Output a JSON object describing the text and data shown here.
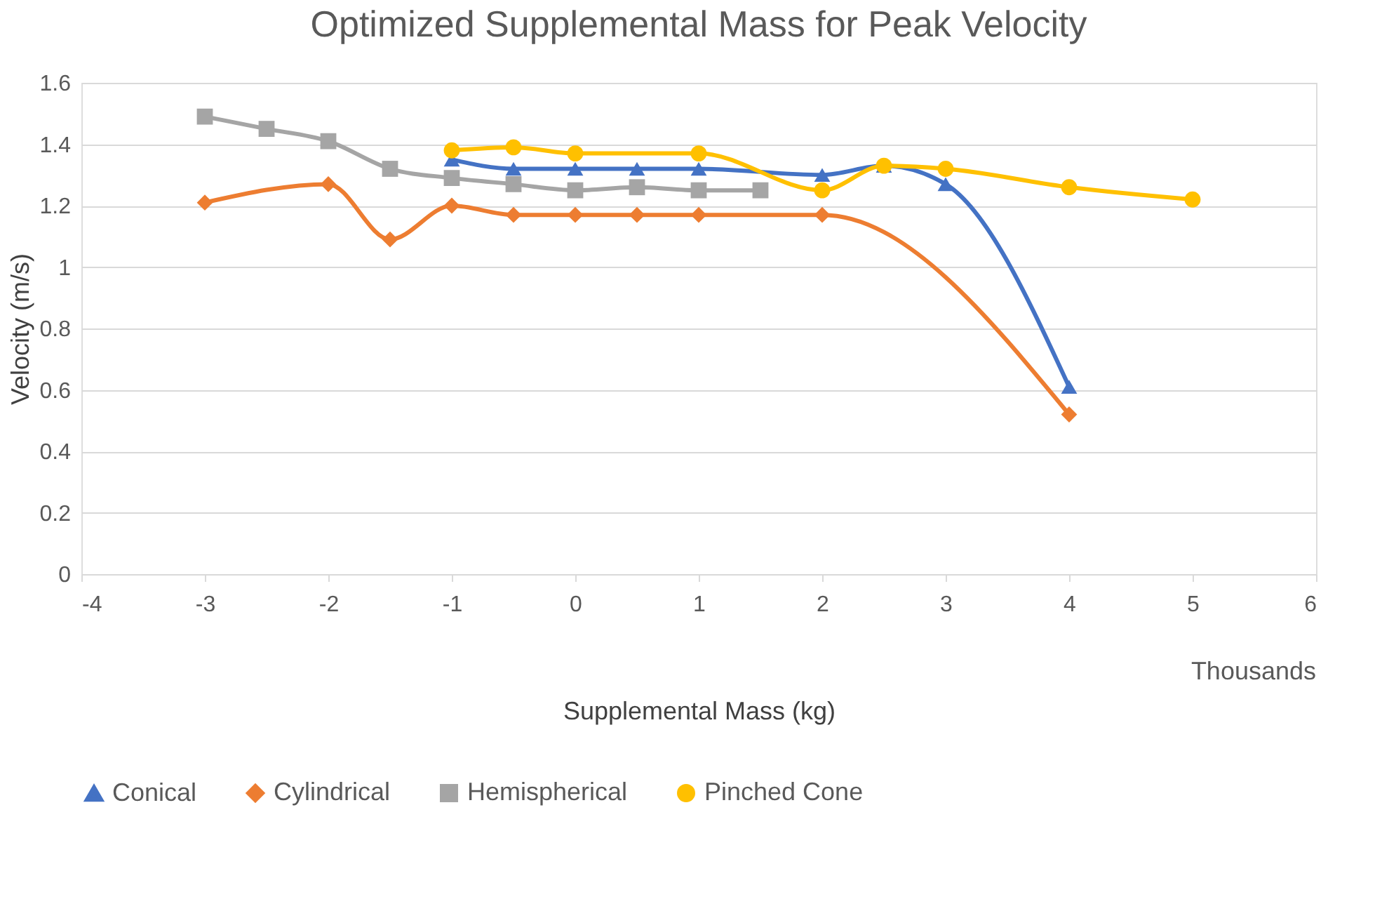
{
  "chart_data": {
    "type": "line",
    "title": "Optimized Supplemental Mass for Peak Velocity",
    "xlabel": "Supplemental Mass (kg)",
    "ylabel": "Velocity (m/s)",
    "annotations": [
      "Thousands"
    ],
    "xlim": [
      -4,
      6
    ],
    "xticks": [
      -4,
      -3,
      -2,
      -1,
      0,
      1,
      2,
      3,
      4,
      5,
      6
    ],
    "ylim": [
      0,
      1.6
    ],
    "yticks": [
      0,
      0.2,
      0.4,
      0.6,
      0.8,
      1,
      1.2,
      1.4,
      1.6
    ],
    "grid": "y",
    "legend": "bottom",
    "series": [
      {
        "name": "Conical",
        "color": "#4472c4",
        "marker": "triangle",
        "x": [
          -1,
          -0.5,
          0,
          0.5,
          1,
          2,
          2.5,
          3,
          4
        ],
        "values": [
          1.35,
          1.32,
          1.32,
          1.32,
          1.32,
          1.3,
          1.33,
          1.27,
          0.61
        ]
      },
      {
        "name": "Cylindrical",
        "color": "#ed7d31",
        "marker": "diamond",
        "x": [
          -3,
          -2,
          -1.5,
          -1,
          -0.5,
          0,
          0.5,
          1,
          2,
          4
        ],
        "values": [
          1.21,
          1.27,
          1.09,
          1.2,
          1.17,
          1.17,
          1.17,
          1.17,
          1.17,
          0.52
        ]
      },
      {
        "name": "Hemispherical",
        "color": "#a5a5a5",
        "marker": "square",
        "x": [
          -3,
          -2.5,
          -2,
          -1.5,
          -1,
          -0.5,
          0,
          0.5,
          1,
          1.5
        ],
        "values": [
          1.49,
          1.45,
          1.41,
          1.32,
          1.29,
          1.27,
          1.25,
          1.26,
          1.25,
          1.25
        ]
      },
      {
        "name": "Pinched Cone",
        "color": "#ffc000",
        "marker": "circle",
        "x": [
          -1,
          -0.5,
          0,
          1,
          2,
          2.5,
          3,
          4,
          5
        ],
        "values": [
          1.38,
          1.39,
          1.37,
          1.37,
          1.25,
          1.33,
          1.32,
          1.26,
          1.22
        ]
      }
    ]
  }
}
